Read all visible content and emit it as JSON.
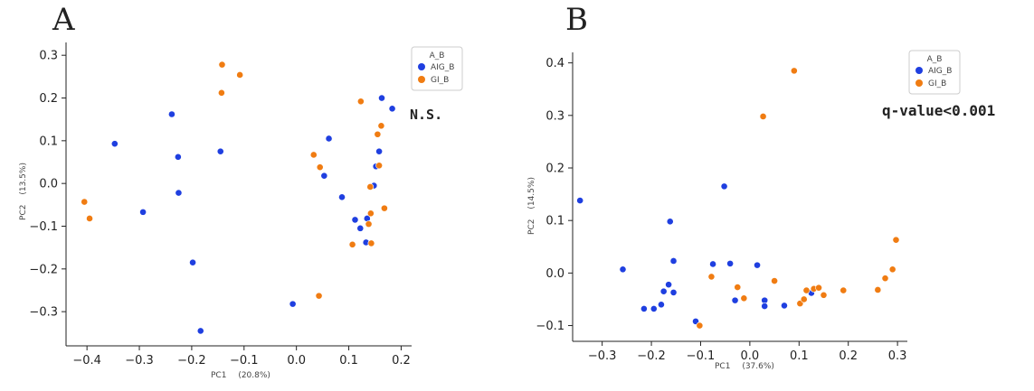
{
  "colors": {
    "AIG_B": "#1f3fe0",
    "GI_B": "#f07c12",
    "axis": "#222222",
    "legend_border": "#cccccc"
  },
  "chart_data": [
    {
      "type": "scatter",
      "panel_label": "A",
      "xlabel": "PC1",
      "xlabel_pct": "(20.8%)",
      "ylabel": "PC2",
      "ylabel_pct": "(13.5%)",
      "xlim": [
        -0.44,
        0.22
      ],
      "ylim": [
        -0.38,
        0.33
      ],
      "xticks": [
        -0.4,
        -0.3,
        -0.2,
        -0.1,
        0.0,
        0.1,
        0.2
      ],
      "xtick_labels": [
        "−0.4",
        "−0.3",
        "−0.2",
        "−0.1",
        "0.0",
        "0.1",
        "0.2"
      ],
      "yticks": [
        -0.3,
        -0.2,
        -0.1,
        0.0,
        0.1,
        0.2,
        0.3
      ],
      "ytick_labels": [
        "−0.3",
        "−0.2",
        "−0.1",
        "0.0",
        "0.1",
        "0.2",
        "0.3"
      ],
      "legend_title": "A_B",
      "legend_position": "top-right",
      "annotation": "N.S.",
      "series": [
        {
          "name": "AIG_B",
          "points": [
            [
              -0.347,
              0.093
            ],
            [
              -0.238,
              0.162
            ],
            [
              -0.226,
              0.062
            ],
            [
              -0.225,
              -0.022
            ],
            [
              -0.293,
              -0.067
            ],
            [
              -0.145,
              0.075
            ],
            [
              -0.198,
              -0.185
            ],
            [
              -0.183,
              -0.345
            ],
            [
              -0.007,
              -0.282
            ],
            [
              0.062,
              0.105
            ],
            [
              0.053,
              0.018
            ],
            [
              0.087,
              -0.032
            ],
            [
              0.112,
              -0.085
            ],
            [
              0.122,
              -0.105
            ],
            [
              0.133,
              -0.138
            ],
            [
              0.135,
              -0.082
            ],
            [
              0.148,
              -0.005
            ],
            [
              0.152,
              0.04
            ],
            [
              0.158,
              0.075
            ],
            [
              0.163,
              0.2
            ],
            [
              0.183,
              0.175
            ]
          ]
        },
        {
          "name": "GI_B",
          "points": [
            [
              -0.405,
              -0.043
            ],
            [
              -0.395,
              -0.082
            ],
            [
              -0.142,
              0.278
            ],
            [
              -0.143,
              0.212
            ],
            [
              -0.108,
              0.254
            ],
            [
              0.033,
              0.067
            ],
            [
              0.045,
              0.038
            ],
            [
              0.043,
              -0.263
            ],
            [
              0.107,
              -0.143
            ],
            [
              0.123,
              0.192
            ],
            [
              0.141,
              -0.008
            ],
            [
              0.138,
              -0.095
            ],
            [
              0.142,
              -0.07
            ],
            [
              0.143,
              -0.14
            ],
            [
              0.155,
              0.115
            ],
            [
              0.158,
              0.042
            ],
            [
              0.162,
              0.135
            ],
            [
              0.168,
              -0.058
            ]
          ]
        }
      ]
    },
    {
      "type": "scatter",
      "panel_label": "B",
      "xlabel": "PC1",
      "xlabel_pct": "(37.6%)",
      "ylabel": "PC2",
      "ylabel_pct": "(14.5%)",
      "xlim": [
        -0.36,
        0.32
      ],
      "ylim": [
        -0.13,
        0.42
      ],
      "xticks": [
        -0.3,
        -0.2,
        -0.1,
        0.0,
        0.1,
        0.2,
        0.3
      ],
      "xtick_labels": [
        "−0.3",
        "−0.2",
        "−0.1",
        "0.0",
        "0.1",
        "0.2",
        "0.3"
      ],
      "yticks": [
        -0.1,
        0.0,
        0.1,
        0.2,
        0.3,
        0.4
      ],
      "ytick_labels": [
        "−0.1",
        "0.0",
        "0.1",
        "0.2",
        "0.3",
        "0.4"
      ],
      "legend_title": "A_B",
      "legend_position": "top-right",
      "annotation": "q-value<0.001",
      "series": [
        {
          "name": "AIG_B",
          "points": [
            [
              -0.345,
              0.138
            ],
            [
              -0.258,
              0.007
            ],
            [
              -0.215,
              -0.068
            ],
            [
              -0.195,
              -0.068
            ],
            [
              -0.18,
              -0.06
            ],
            [
              -0.175,
              -0.035
            ],
            [
              -0.165,
              -0.022
            ],
            [
              -0.155,
              -0.037
            ],
            [
              -0.155,
              0.023
            ],
            [
              -0.162,
              0.098
            ],
            [
              -0.075,
              0.017
            ],
            [
              -0.052,
              0.165
            ],
            [
              -0.04,
              0.018
            ],
            [
              -0.03,
              -0.052
            ],
            [
              0.015,
              0.015
            ],
            [
              0.03,
              -0.052
            ],
            [
              0.03,
              -0.063
            ],
            [
              0.07,
              -0.062
            ],
            [
              0.125,
              -0.038
            ],
            [
              -0.11,
              -0.092
            ]
          ]
        },
        {
          "name": "GI_B",
          "points": [
            [
              0.09,
              0.385
            ],
            [
              0.027,
              0.298
            ],
            [
              -0.078,
              -0.007
            ],
            [
              -0.102,
              -0.1
            ],
            [
              -0.025,
              -0.027
            ],
            [
              -0.012,
              -0.048
            ],
            [
              0.05,
              -0.015
            ],
            [
              0.102,
              -0.058
            ],
            [
              0.11,
              -0.05
            ],
            [
              0.115,
              -0.033
            ],
            [
              0.13,
              -0.03
            ],
            [
              0.14,
              -0.028
            ],
            [
              0.15,
              -0.042
            ],
            [
              0.19,
              -0.033
            ],
            [
              0.26,
              -0.032
            ],
            [
              0.275,
              -0.01
            ],
            [
              0.29,
              0.007
            ],
            [
              0.297,
              0.063
            ]
          ]
        }
      ]
    }
  ]
}
